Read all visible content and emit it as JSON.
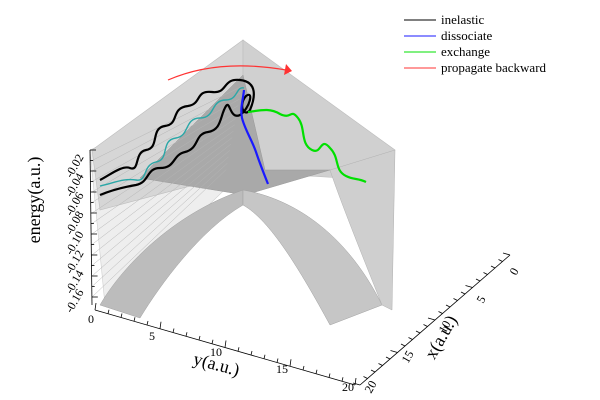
{
  "chart_data": {
    "type": "surface3d",
    "title": "",
    "zlabel": "energy(a.u.)",
    "ylabel": "y(a.u.)",
    "xlabel": "x(a.u.)",
    "z_ticks": [
      "-0.02",
      "-0.04",
      "-0.06",
      "-0.08",
      "-0.10",
      "-0.12",
      "-0.14",
      "-0.16"
    ],
    "y_ticks": [
      "0",
      "5",
      "10",
      "15",
      "20"
    ],
    "x_ticks": [
      "0",
      "5",
      "10",
      "15",
      "20"
    ],
    "legend_position": "top-right",
    "series": [
      {
        "name": "inelastic",
        "color": "#000000"
      },
      {
        "name": "dissociate",
        "color": "#1a1aff"
      },
      {
        "name": "exchange",
        "color": "#00e000"
      },
      {
        "name": "propagate backward",
        "color": "#ff3333"
      }
    ]
  }
}
